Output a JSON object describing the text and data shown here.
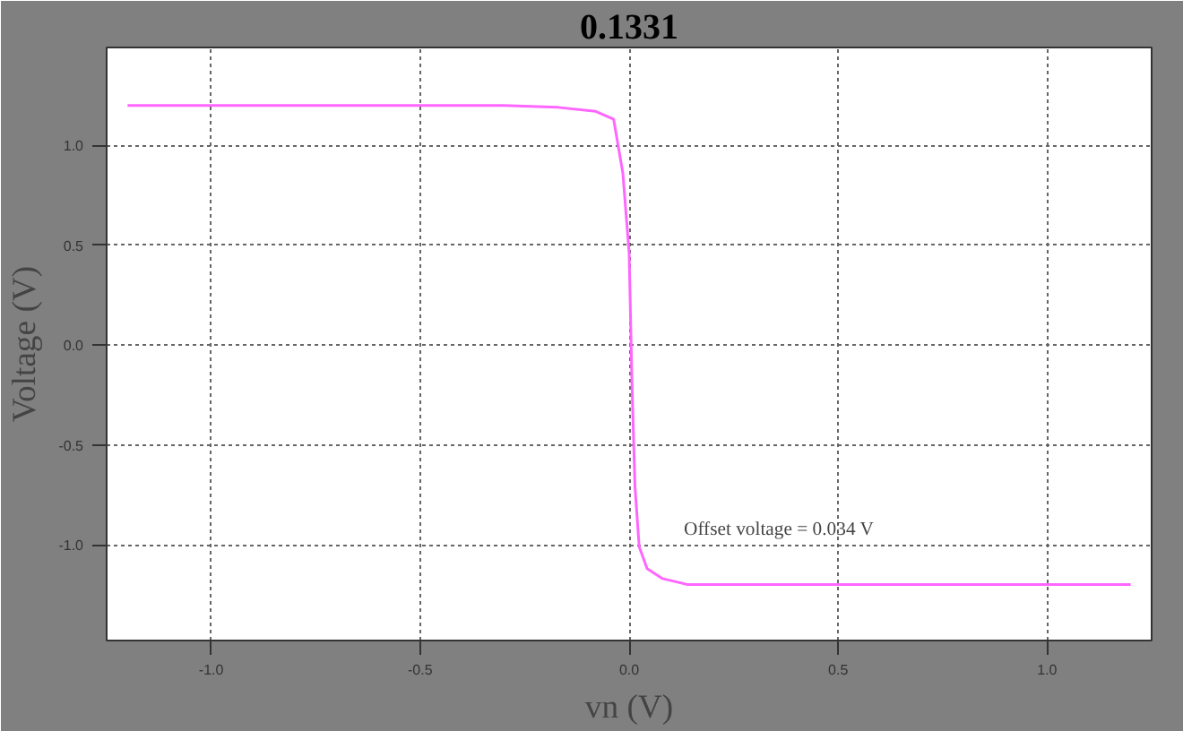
{
  "chart_data": {
    "type": "line",
    "title": "0.1331",
    "xlabel": "vn (V)",
    "ylabel": "Voltage (V)",
    "x": [
      -1.2,
      -0.3,
      -0.17,
      -0.08,
      -0.037,
      -0.015,
      0.0,
      0.007,
      0.014,
      0.024,
      0.043,
      0.08,
      0.14,
      1.2
    ],
    "series": [
      {
        "color": "#ff66ff",
        "values": [
          1.2,
          1.2,
          1.19,
          1.17,
          1.13,
          0.86,
          0.46,
          -0.21,
          -0.71,
          -1.01,
          -1.12,
          -1.17,
          -1.2,
          -1.2
        ]
      }
    ],
    "xlim": [
      -1.25,
      1.25
    ],
    "ylim": [
      -1.48,
      1.49
    ],
    "xticks": [
      {
        "value": -1.0,
        "label": "-1.0"
      },
      {
        "value": -0.5,
        "label": "-0.5"
      },
      {
        "value": 0,
        "label": "0.0"
      },
      {
        "value": 0.5,
        "label": "0.5"
      },
      {
        "value": 1.0,
        "label": "1.0"
      }
    ],
    "yticks": [
      {
        "value": -1.0,
        "label": "-1.0"
      },
      {
        "value": -0.5,
        "label": "-0.5"
      },
      {
        "value": 0,
        "label": "0.0"
      },
      {
        "value": 0.5,
        "label": "0.5"
      },
      {
        "value": 1.0,
        "label": "1.0"
      }
    ],
    "grid": true,
    "marker": "none",
    "line_style": "solid",
    "annotations": [
      "Offset voltage = 0.034 V"
    ]
  }
}
